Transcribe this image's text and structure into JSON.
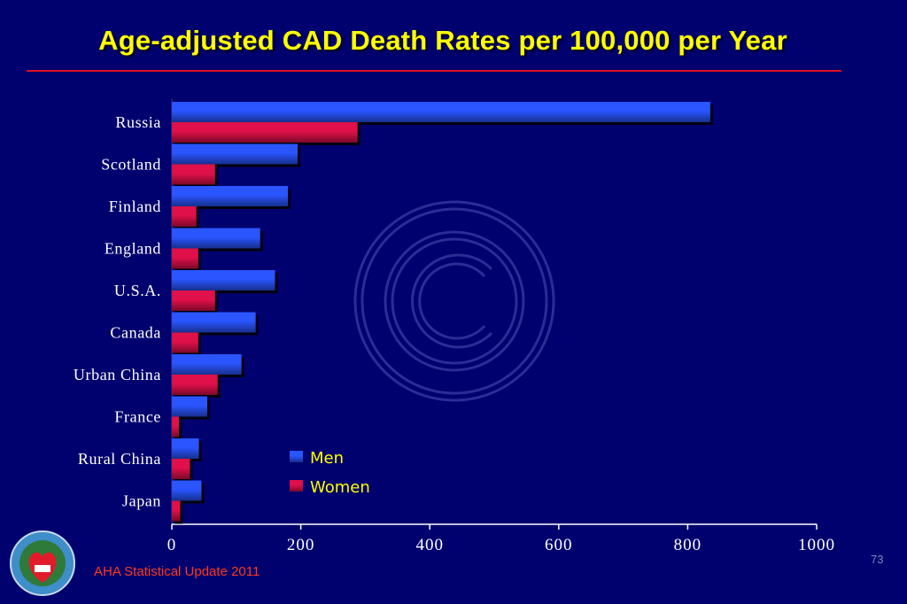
{
  "slide": {
    "title": "Age-adjusted CAD Death Rates per 100,000 per Year",
    "source": "AHA Statistical Update 2011",
    "page_number": "73",
    "colors": {
      "background": "#00006e",
      "title": "#ffff00",
      "rule": "#e01020",
      "source_text": "#ff3a1e"
    }
  },
  "chart_data": {
    "type": "bar",
    "orientation": "horizontal",
    "categories": [
      "Russia",
      "Scotland",
      "Finland",
      "England",
      "U.S.A.",
      "Canada",
      "Urban China",
      "France",
      "Rural China",
      "Japan"
    ],
    "series": [
      {
        "name": "Men",
        "color": "#2a55ff",
        "values": [
          835,
          195,
          180,
          137,
          160,
          130,
          108,
          55,
          42,
          46
        ]
      },
      {
        "name": "Women",
        "color": "#e0104a",
        "values": [
          288,
          67,
          38,
          41,
          67,
          41,
          71,
          11,
          28,
          13
        ]
      }
    ],
    "xlim": [
      0,
      1000
    ],
    "xticks": [
      "0",
      "200",
      "400",
      "600",
      "800",
      "1000"
    ],
    "xlabel": "",
    "ylabel": "",
    "grid": false,
    "legend_position": "lower-middle"
  },
  "icons": {
    "watermark": "copyright-watermark-icon",
    "logo": "cadi-research-foundation-logo"
  }
}
